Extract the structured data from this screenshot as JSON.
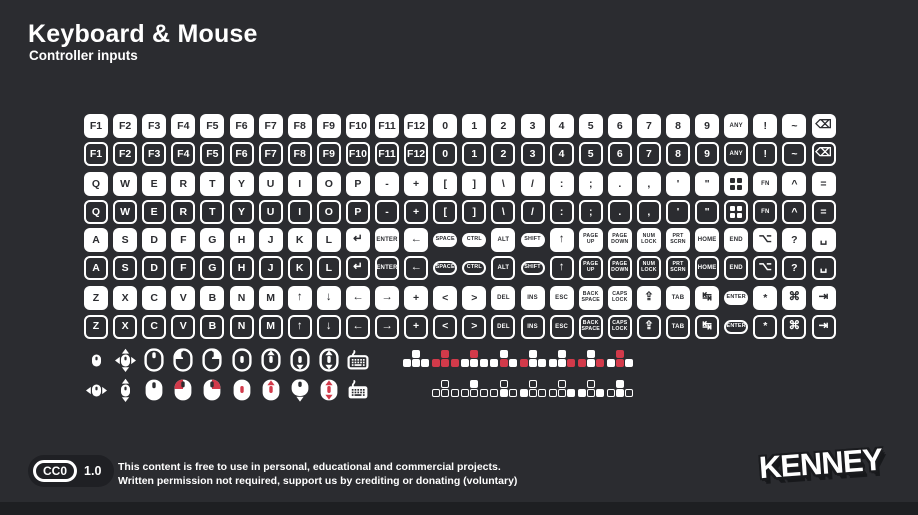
{
  "header": {
    "title": "Keyboard & Mouse",
    "subtitle": "Controller inputs"
  },
  "colors": {
    "background": "#2b2c30",
    "key_white": "#ffffff",
    "highlight_red": "#d23a4a",
    "edge_dark": "#1e1f22"
  },
  "keyboard": {
    "styles": [
      "solid",
      "outline"
    ],
    "row_pairs": [
      {
        "keys": [
          {
            "l": "F1"
          },
          {
            "l": "F2"
          },
          {
            "l": "F3"
          },
          {
            "l": "F4"
          },
          {
            "l": "F5"
          },
          {
            "l": "F6"
          },
          {
            "l": "F7"
          },
          {
            "l": "F8"
          },
          {
            "l": "F9"
          },
          {
            "l": "F10"
          },
          {
            "l": "F11"
          },
          {
            "l": "F12"
          },
          {
            "l": "0"
          },
          {
            "l": "1"
          },
          {
            "l": "2"
          },
          {
            "l": "3"
          },
          {
            "l": "4"
          },
          {
            "l": "5"
          },
          {
            "l": "6"
          },
          {
            "l": "7"
          },
          {
            "l": "8"
          },
          {
            "l": "9"
          },
          {
            "l": "ANY",
            "t": "sm",
            "n": "any-key"
          },
          {
            "l": "!",
            "n": "key-exclamation"
          },
          {
            "l": "~",
            "n": "key-tilde"
          },
          {
            "l": "⌫",
            "t": "gl",
            "n": "backspace-key"
          }
        ]
      },
      {
        "keys": [
          {
            "l": "Q"
          },
          {
            "l": "W"
          },
          {
            "l": "E"
          },
          {
            "l": "R"
          },
          {
            "l": "T"
          },
          {
            "l": "Y"
          },
          {
            "l": "U"
          },
          {
            "l": "I"
          },
          {
            "l": "O"
          },
          {
            "l": "P"
          },
          {
            "l": "-",
            "n": "key-minus"
          },
          {
            "l": "+",
            "n": "key-plus"
          },
          {
            "l": "[",
            "n": "key-bracket-open"
          },
          {
            "l": "]",
            "n": "key-bracket-close"
          },
          {
            "l": "\\",
            "n": "key-backslash"
          },
          {
            "l": "/",
            "n": "key-slash"
          },
          {
            "l": ":",
            "n": "key-colon"
          },
          {
            "l": ";",
            "n": "key-semicolon"
          },
          {
            "l": ".",
            "n": "key-period"
          },
          {
            "l": ",",
            "n": "key-comma"
          },
          {
            "l": "'",
            "n": "key-apostrophe"
          },
          {
            "l": "\"",
            "n": "key-quote"
          },
          {
            "t": "win",
            "n": "windows-key"
          },
          {
            "l": "FN",
            "t": "sm",
            "n": "fn-key"
          },
          {
            "l": "^",
            "n": "key-caret"
          },
          {
            "l": "=",
            "n": "key-equals"
          }
        ]
      },
      {
        "keys": [
          {
            "l": "A"
          },
          {
            "l": "S"
          },
          {
            "l": "D"
          },
          {
            "l": "F"
          },
          {
            "l": "G"
          },
          {
            "l": "H"
          },
          {
            "l": "J"
          },
          {
            "l": "K"
          },
          {
            "l": "L"
          },
          {
            "l": "↵",
            "t": "gl",
            "n": "return-key"
          },
          {
            "l": "ENTER",
            "t": "sm",
            "n": "enter-key"
          },
          {
            "l": "←",
            "t": "gl",
            "n": "backspace-arrow-key"
          },
          {
            "l": "SPACE",
            "t": "pill",
            "n": "space-key"
          },
          {
            "l": "CTRL",
            "t": "pill",
            "n": "ctrl-key"
          },
          {
            "l": "ALT",
            "t": "sm",
            "n": "alt-key"
          },
          {
            "l": "SHIFT",
            "t": "pill",
            "n": "shift-key"
          },
          {
            "l": "↑",
            "t": "gl",
            "n": "shift-up-key"
          },
          {
            "l": "PAGE\nUP",
            "t": "t2",
            "n": "page-up-key"
          },
          {
            "l": "PAGE\nDOWN",
            "t": "t2",
            "n": "page-down-key"
          },
          {
            "l": "NUM\nLOCK",
            "t": "t2",
            "n": "num-lock-key"
          },
          {
            "l": "PRT\nSCRN",
            "t": "t2",
            "n": "print-screen-key"
          },
          {
            "l": "HOME",
            "t": "sm",
            "n": "home-key"
          },
          {
            "l": "END",
            "t": "sm",
            "n": "end-key"
          },
          {
            "l": "⌥",
            "t": "gl",
            "n": "option-key"
          },
          {
            "l": "?",
            "n": "key-question"
          },
          {
            "l": "␣",
            "t": "gl",
            "n": "spacebar-key"
          }
        ]
      },
      {
        "keys": [
          {
            "l": "Z"
          },
          {
            "l": "X"
          },
          {
            "l": "C"
          },
          {
            "l": "V"
          },
          {
            "l": "B"
          },
          {
            "l": "N"
          },
          {
            "l": "M"
          },
          {
            "l": "↑",
            "t": "gl",
            "n": "arrow-up-key"
          },
          {
            "l": "↓",
            "t": "gl",
            "n": "arrow-down-key"
          },
          {
            "l": "←",
            "t": "gl",
            "n": "arrow-left-key"
          },
          {
            "l": "→",
            "t": "gl",
            "n": "arrow-right-key"
          },
          {
            "l": "+",
            "n": "key-plus-2"
          },
          {
            "l": "<",
            "n": "key-less-than"
          },
          {
            "l": ">",
            "n": "key-greater-than"
          },
          {
            "l": "DEL",
            "t": "sm",
            "n": "delete-key"
          },
          {
            "l": "INS",
            "t": "sm",
            "n": "insert-key"
          },
          {
            "l": "ESC",
            "t": "sm",
            "n": "escape-key"
          },
          {
            "l": "BACK\nSPACE",
            "t": "t2",
            "n": "backspace-word-key"
          },
          {
            "l": "CAPS\nLOCK",
            "t": "t2",
            "n": "caps-lock-key"
          },
          {
            "l": "⇪",
            "t": "gl",
            "n": "caps-shift-key"
          },
          {
            "l": "TAB",
            "t": "sm",
            "n": "tab-key"
          },
          {
            "l": "↹",
            "t": "gl",
            "n": "tab-switch-key"
          },
          {
            "l": "ENTER",
            "t": "pill",
            "n": "enter-pill-key"
          },
          {
            "l": "*",
            "n": "key-asterisk"
          },
          {
            "l": "⌘",
            "t": "gl",
            "n": "command-key"
          },
          {
            "l": "⇥",
            "t": "gl",
            "n": "tab-right-key"
          }
        ]
      }
    ]
  },
  "mouse_rows": [
    {
      "style": "outline",
      "icons": [
        {
          "n": "mouse-small-icon",
          "base": "small"
        },
        {
          "n": "mouse-move-icon",
          "base": "small",
          "arrows": [
            "up",
            "down",
            "left",
            "right"
          ]
        },
        {
          "n": "mouse-icon",
          "base": "large",
          "wheel": "top"
        },
        {
          "n": "mouse-left-button-icon",
          "base": "large",
          "button": "left"
        },
        {
          "n": "mouse-right-button-icon",
          "base": "large",
          "button": "right"
        },
        {
          "n": "mouse-wheel-icon",
          "base": "large",
          "wheel": "center"
        },
        {
          "n": "mouse-scroll-up-icon",
          "base": "large",
          "wheel": "center",
          "arrows": [
            "up"
          ]
        },
        {
          "n": "mouse-scroll-down-icon",
          "base": "large",
          "wheel": "center",
          "arrows": [
            "down"
          ]
        },
        {
          "n": "mouse-scroll-icon",
          "base": "large",
          "wheel": "center",
          "arrows": [
            "up",
            "down"
          ]
        },
        {
          "n": "keyboard-icon",
          "base": "keyboard"
        }
      ]
    },
    {
      "style": "solid",
      "icons": [
        {
          "n": "mouse-move-horizontal-icon",
          "base": "small",
          "arrows": [
            "left",
            "right"
          ]
        },
        {
          "n": "mouse-move-vertical-icon",
          "base": "small",
          "arrows": [
            "up",
            "down"
          ]
        },
        {
          "n": "mouse-solid-icon",
          "base": "large",
          "wheel": "top"
        },
        {
          "n": "mouse-left-click-icon",
          "base": "large",
          "button": "left",
          "highlight": "red"
        },
        {
          "n": "mouse-right-click-icon",
          "base": "large",
          "button": "right",
          "highlight": "red"
        },
        {
          "n": "mouse-wheel-red-icon",
          "base": "large",
          "wheel": "center",
          "highlight": "red"
        },
        {
          "n": "mouse-scroll-up-red-icon",
          "base": "large",
          "wheel": "center",
          "arrows": [
            "up"
          ],
          "highlight": "red"
        },
        {
          "n": "mouse-scroll-down-white-icon",
          "base": "large",
          "arrows": [
            "down-out"
          ]
        },
        {
          "n": "mouse-scroll-red-icon",
          "base": "large",
          "wheel": "center",
          "arrows": [
            "up",
            "down"
          ],
          "highlight": "red"
        },
        {
          "n": "keyboard-solid-icon",
          "base": "keyboard"
        }
      ]
    }
  ],
  "dpad_rows": [
    {
      "style": "solid",
      "clusters": [
        {
          "n": "keys-cluster-idle",
          "up": "w",
          "left": "w",
          "down": "w",
          "right": "w"
        },
        {
          "n": "keys-cluster-all",
          "up": "r",
          "left": "r",
          "down": "r",
          "right": "r"
        },
        {
          "n": "keys-cluster-up",
          "up": "r",
          "left": "w",
          "down": "w",
          "right": "w"
        },
        {
          "n": "keys-cluster-down",
          "up": "w",
          "left": "w",
          "down": "r",
          "right": "w"
        },
        {
          "n": "keys-cluster-left",
          "up": "w",
          "left": "r",
          "down": "w",
          "right": "w"
        },
        {
          "n": "keys-cluster-right",
          "up": "w",
          "left": "w",
          "down": "w",
          "right": "r"
        },
        {
          "n": "keys-cluster-horizontal",
          "up": "w",
          "left": "r",
          "down": "w",
          "right": "r"
        },
        {
          "n": "keys-cluster-vertical",
          "up": "r",
          "left": "w",
          "down": "r",
          "right": "w"
        }
      ]
    },
    {
      "style": "outline",
      "clusters": [
        {
          "n": "keys-cluster-idle",
          "up": "o",
          "left": "o",
          "down": "o",
          "right": "o"
        },
        {
          "n": "keys-cluster-up",
          "up": "f",
          "left": "o",
          "down": "o",
          "right": "o"
        },
        {
          "n": "keys-cluster-down",
          "up": "o",
          "left": "o",
          "down": "f",
          "right": "o"
        },
        {
          "n": "keys-cluster-left",
          "up": "o",
          "left": "f",
          "down": "o",
          "right": "o"
        },
        {
          "n": "keys-cluster-right",
          "up": "o",
          "left": "o",
          "down": "o",
          "right": "f"
        },
        {
          "n": "keys-cluster-horizontal",
          "up": "o",
          "left": "f",
          "down": "o",
          "right": "f"
        },
        {
          "n": "keys-cluster-vertical",
          "up": "f",
          "left": "o",
          "down": "f",
          "right": "o"
        }
      ]
    }
  ],
  "footer": {
    "license_badge": "CC0",
    "license_version": "1.0",
    "line1": "This content is free to use in personal, educational and commercial projects.",
    "line2": "Written permission not required, support us by crediting or donating (voluntary)",
    "brand": "KENNEY"
  }
}
